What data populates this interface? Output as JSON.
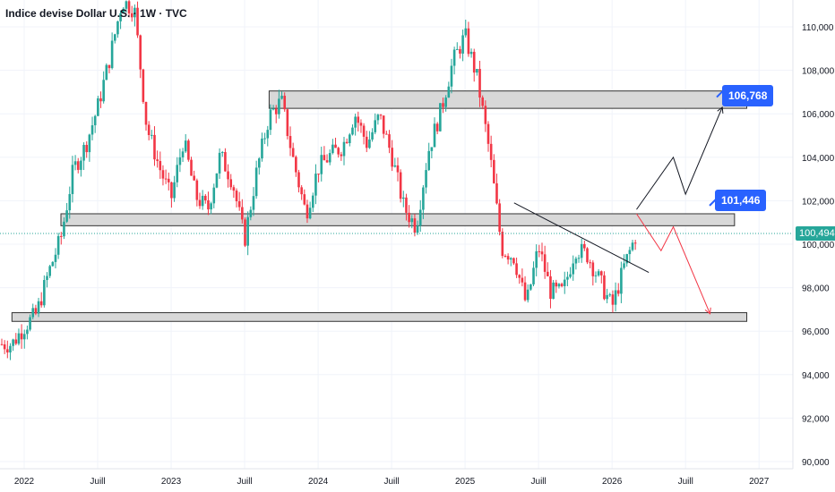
{
  "header": {
    "title": "Indice devise Dollar U.S. · 1W · TVC"
  },
  "colors": {
    "up": "#26a69a",
    "down": "#f23645",
    "accent": "#2962ff",
    "grid": "#f0f3fa",
    "zone_fill": "#d8d8d8",
    "zone_stroke": "#333333"
  },
  "chart_data": {
    "type": "candlestick",
    "title": "Indice devise Dollar U.S. · 1W · TVC",
    "ylim": [
      89.6,
      111.4
    ],
    "y_ticks": [
      "110,000",
      "108,000",
      "106,000",
      "104,000",
      "102,000",
      "100,000",
      "98,000",
      "96,000",
      "94,000",
      "92,000",
      "90,000"
    ],
    "y_tick_values": [
      110,
      108,
      106,
      104,
      102,
      100,
      98,
      96,
      94,
      92,
      90
    ],
    "x_ticks": [
      "2022",
      "Juill",
      "2023",
      "Juill",
      "2024",
      "Juill",
      "2025",
      "Juill",
      "2026",
      "Juill",
      "2027"
    ],
    "x_tick_dates": [
      "2022-01",
      "2022-07",
      "2023-01",
      "2023-07",
      "2024-01",
      "2024-07",
      "2025-01",
      "2025-07",
      "2026-01",
      "2026-07",
      "2027-01"
    ],
    "last_price": "100,494",
    "last_price_value": 100.494,
    "targets": [
      {
        "label": "106,768",
        "value": 106.768
      },
      {
        "label": "101,446",
        "value": 101.446
      }
    ],
    "zones": [
      {
        "from": "2023-09",
        "to": "2026-12",
        "low": 106.25,
        "high": 107.05
      },
      {
        "from": "2022-04",
        "to": "2026-11",
        "low": 100.85,
        "high": 101.4
      },
      {
        "from": "2021-12",
        "to": "2026-12",
        "low": 96.45,
        "high": 96.85
      }
    ],
    "trendline": {
      "from": [
        "2025-05",
        101.9
      ],
      "to": [
        "2026-04",
        98.7
      ]
    },
    "projection_up": {
      "color": "#131722",
      "points": [
        [
          "2026-03",
          101.6
        ],
        [
          "2026-06",
          104
        ],
        [
          "2026-07",
          102.3
        ],
        [
          "2026-10",
          106.3
        ]
      ]
    },
    "projection_down": {
      "color": "#f23645",
      "points": [
        [
          "2026-03",
          101.4
        ],
        [
          "2026-05",
          99.7
        ],
        [
          "2026-06",
          100.8
        ],
        [
          "2026-09",
          96.8
        ]
      ]
    },
    "price_path": [
      [
        "2021-12",
        95.4
      ],
      [
        "2022-01",
        96.2
      ],
      [
        "2022-02",
        96.8
      ],
      [
        "2022-03",
        98.7
      ],
      [
        "2022-04",
        100.3
      ],
      [
        "2022-05",
        103.4
      ],
      [
        "2022-06",
        104.5
      ],
      [
        "2022-07",
        106.3
      ],
      [
        "2022-08",
        108.6
      ],
      [
        "2022-09",
        111.2
      ],
      [
        "2022-10",
        110.8
      ],
      [
        "2022-11",
        105.4
      ],
      [
        "2022-12",
        103.6
      ],
      [
        "2023-01",
        102.1
      ],
      [
        "2023-02",
        104.8
      ],
      [
        "2023-03",
        102.2
      ],
      [
        "2023-04",
        101.6
      ],
      [
        "2023-05",
        104.1
      ],
      [
        "2023-06",
        102.9
      ],
      [
        "2023-07",
        100.2
      ],
      [
        "2023-08",
        103.4
      ],
      [
        "2023-09",
        105.9
      ],
      [
        "2023-10",
        106.6
      ],
      [
        "2023-11",
        103.8
      ],
      [
        "2023-12",
        101.4
      ],
      [
        "2024-01",
        103.5
      ],
      [
        "2024-02",
        104.1
      ],
      [
        "2024-03",
        104.5
      ],
      [
        "2024-04",
        106.0
      ],
      [
        "2024-05",
        104.6
      ],
      [
        "2024-06",
        105.9
      ],
      [
        "2024-07",
        104.1
      ],
      [
        "2024-08",
        101.7
      ],
      [
        "2024-09",
        100.8
      ],
      [
        "2024-10",
        104.3
      ],
      [
        "2024-11",
        106.1
      ],
      [
        "2024-12",
        108.4
      ],
      [
        "2025-01",
        109.6
      ],
      [
        "2025-02",
        107.6
      ],
      [
        "2025-03",
        104.2
      ],
      [
        "2025-04",
        99.8
      ],
      [
        "2025-05",
        99.4
      ],
      [
        "2025-06",
        97.2
      ],
      [
        "2025-07",
        99.9
      ],
      [
        "2025-08",
        97.8
      ],
      [
        "2025-09",
        97.8
      ],
      [
        "2025-10",
        99.8
      ],
      [
        "2025-11",
        99.5
      ],
      [
        "2025-12",
        98.3
      ],
      [
        "2026-01",
        97.1
      ],
      [
        "2026-02",
        99.0
      ],
      [
        "2026-03",
        100.5
      ]
    ]
  }
}
